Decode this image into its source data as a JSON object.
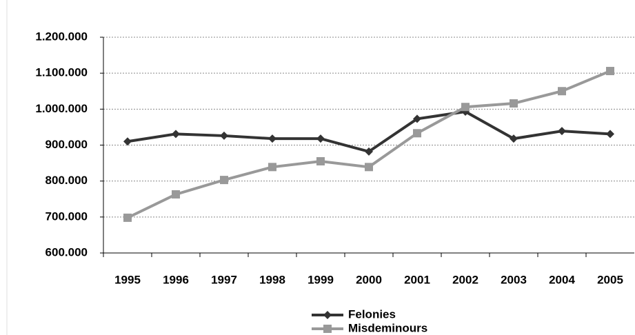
{
  "chart_data": {
    "type": "line",
    "categories": [
      "1995",
      "1996",
      "1997",
      "1998",
      "1999",
      "2000",
      "2001",
      "2002",
      "2003",
      "2004",
      "2005"
    ],
    "series": [
      {
        "name": "Felonies",
        "color": "#333333",
        "marker": "diamond",
        "values": [
          910000,
          931000,
          926000,
          918000,
          918000,
          882000,
          973000,
          993000,
          918000,
          939000,
          931000
        ]
      },
      {
        "name": "Misdeminours",
        "color": "#999999",
        "marker": "square",
        "values": [
          698000,
          763000,
          803000,
          839000,
          855000,
          839000,
          933000,
          1006000,
          1016000,
          1050000,
          1106000
        ]
      }
    ],
    "ylim": [
      600000,
      1200000
    ],
    "yticks": [
      {
        "value": 600000,
        "label": "600.000"
      },
      {
        "value": 700000,
        "label": "700.000"
      },
      {
        "value": 800000,
        "label": "800.000"
      },
      {
        "value": 900000,
        "label": "900.000"
      },
      {
        "value": 1000000,
        "label": "1.000.000"
      },
      {
        "value": 1100000,
        "label": "1.100.000"
      },
      {
        "value": 1200000,
        "label": "1.200.000"
      }
    ],
    "grid": true,
    "legend": "bottom"
  }
}
